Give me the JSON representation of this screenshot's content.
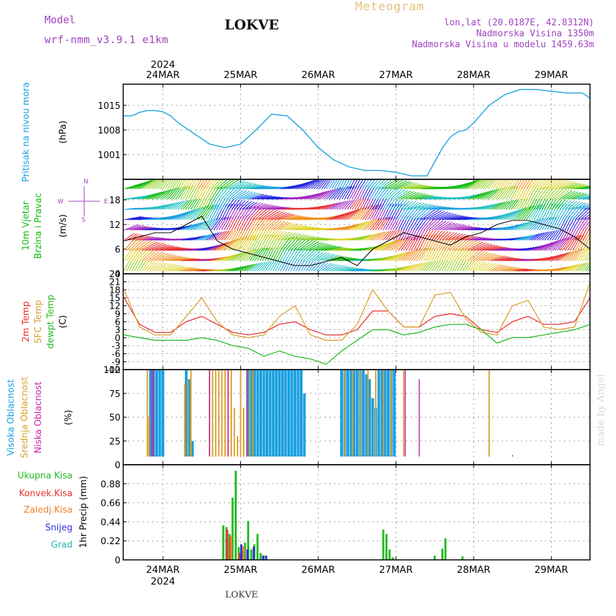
{
  "header": {
    "model_label": "Model",
    "model_name": "wrf-nmm_v3.9.1 e1km",
    "station": "LOKVE",
    "meteogram": "Meteogram",
    "lonlat": "lon,lat (20.0187E, 42.8312N)",
    "altitude": "Nadmorska Visina 1350m",
    "model_altitude": "Nadmorska Visina u modelu 1459.63m"
  },
  "footer": {
    "station": "LOKVE",
    "credit": "made by Angel"
  },
  "colors": {
    "pressure": "#1aa0e0",
    "wind_label": "#11bb11",
    "temp2m": "#e83030",
    "sfc": "#dca030",
    "dewpt": "#22bb22",
    "cloud_high": "#1aa0e0",
    "cloud_mid": "#dca030",
    "cloud_low": "#cc22aa",
    "purple": "#a040c0",
    "meteogram": "#e8c078"
  },
  "chart_data": [
    {
      "type": "line",
      "panel": "pressure",
      "ylabel_left": "Pritisak na nivou mora",
      "ylabel_unit": "(hPa)",
      "ylim": [
        994,
        1021
      ],
      "yticks": [
        "1015",
        "1008",
        "1001"
      ],
      "ytick_values": [
        1015,
        1008,
        1001
      ],
      "x_top": [
        "24MAR",
        "25MAR",
        "26MAR",
        "27MAR",
        "28MAR",
        "29MAR"
      ],
      "x_top_year": "2024",
      "x": [
        -0.5,
        -0.4,
        -0.3,
        -0.2,
        -0.1,
        0,
        0.1,
        0.2,
        0.4,
        0.6,
        0.8,
        1.0,
        1.2,
        1.4,
        1.6,
        1.8,
        2.0,
        2.2,
        2.4,
        2.6,
        2.8,
        3.0,
        3.2,
        3.4,
        3.6,
        3.7,
        3.8,
        3.9,
        4.0,
        4.2,
        4.4,
        4.6,
        4.8,
        5.0,
        5.2,
        5.4,
        5.5
      ],
      "values": [
        1012,
        1012,
        1013,
        1013.5,
        1013.5,
        1013.2,
        1012,
        1010,
        1007,
        1004,
        1003,
        1004,
        1008,
        1012.5,
        1012,
        1008,
        1003,
        999.5,
        997.5,
        996.5,
        996.5,
        996,
        995,
        995,
        1003,
        1006,
        1007.5,
        1008,
        1010,
        1015,
        1018,
        1019.5,
        1019.5,
        1019,
        1018.5,
        1018.5,
        1017
      ]
    },
    {
      "type": "line",
      "panel": "wind",
      "ylabel_left": [
        "10m Vjetar",
        "Brzina i Pravac"
      ],
      "ylabel_unit": "(m/s)",
      "legend_compass": [
        "N",
        "E",
        "W",
        "S"
      ],
      "ylim": [
        0,
        23
      ],
      "yticks": [
        "18",
        "12",
        "6",
        "0"
      ],
      "ytick_values": [
        18,
        12,
        6,
        0
      ],
      "series": [
        {
          "name": "",
          "x": [
            -0.5,
            -0.3,
            -0.1,
            0.1,
            0.3,
            0.5,
            0.7,
            0.9,
            1.1,
            1.3,
            1.5,
            1.7,
            1.9,
            2.1,
            2.3,
            2.5,
            2.7,
            2.9,
            3.1,
            3.3,
            3.5,
            3.7,
            3.9,
            4.1,
            4.3,
            4.5,
            4.7,
            4.9,
            5.1,
            5.3,
            5.5
          ],
          "values": [
            8,
            9,
            10,
            10,
            12,
            14,
            8,
            6,
            5,
            4,
            3,
            2,
            2,
            3,
            4,
            2,
            6,
            8,
            10,
            9,
            8,
            7,
            9,
            10,
            12,
            13,
            13,
            12,
            11,
            9,
            6
          ]
        }
      ]
    },
    {
      "type": "line",
      "panel": "temperature",
      "ylabel_left": [
        "2m Temp",
        "SFC Temp",
        "dewpt Temp"
      ],
      "ylabel_unit": "(C)",
      "ylim": [
        -12,
        24
      ],
      "yticks": [
        "24",
        "21",
        "18",
        "15",
        "12",
        "9",
        "6",
        "3",
        "0",
        "-3",
        "-6",
        "-9",
        "-12"
      ],
      "ytick_values": [
        24,
        21,
        18,
        15,
        12,
        9,
        6,
        3,
        0,
        -3,
        -6,
        -9,
        -12
      ],
      "series": [
        {
          "name": "2m Temp",
          "x": [
            -0.5,
            -0.3,
            -0.1,
            0.1,
            0.3,
            0.5,
            0.7,
            0.9,
            1.1,
            1.3,
            1.5,
            1.7,
            1.9,
            2.1,
            2.3,
            2.5,
            2.7,
            2.9,
            3.1,
            3.3,
            3.5,
            3.7,
            3.9,
            4.1,
            4.3,
            4.5,
            4.7,
            4.9,
            5.1,
            5.3,
            5.5
          ],
          "values": [
            15,
            5,
            2,
            2,
            6,
            8,
            5,
            2,
            1,
            2,
            5,
            6,
            3,
            1,
            1,
            3,
            10,
            10,
            4,
            4,
            8,
            9,
            8,
            3,
            2,
            6,
            8,
            5,
            5,
            6,
            15
          ]
        },
        {
          "name": "SFC Temp",
          "x": [
            -0.5,
            -0.3,
            -0.1,
            0.1,
            0.3,
            0.5,
            0.7,
            0.9,
            1.1,
            1.3,
            1.5,
            1.7,
            1.9,
            2.1,
            2.3,
            2.5,
            2.7,
            2.9,
            3.1,
            3.3,
            3.5,
            3.7,
            3.9,
            4.1,
            4.3,
            4.5,
            4.7,
            4.9,
            5.1,
            5.3,
            5.5
          ],
          "values": [
            18,
            4,
            1,
            1,
            8,
            15,
            6,
            1,
            0,
            1,
            8,
            12,
            1,
            -1,
            -1,
            5,
            18,
            10,
            4,
            4,
            16,
            17,
            7,
            2,
            1,
            12,
            14,
            4,
            3,
            4,
            21
          ]
        },
        {
          "name": "dewpt Temp",
          "x": [
            -0.5,
            -0.3,
            -0.1,
            0.1,
            0.3,
            0.5,
            0.7,
            0.9,
            1.1,
            1.3,
            1.5,
            1.7,
            1.9,
            2.1,
            2.3,
            2.5,
            2.7,
            2.9,
            3.1,
            3.3,
            3.5,
            3.7,
            3.9,
            4.1,
            4.3,
            4.5,
            4.7,
            4.9,
            5.1,
            5.3,
            5.5
          ],
          "values": [
            1,
            0,
            -1,
            -1,
            -1,
            0,
            -1,
            -3,
            -4,
            -7,
            -5,
            -7,
            -8,
            -10,
            -5,
            -1,
            3,
            3,
            1,
            2,
            4,
            5,
            5,
            3,
            -2,
            0,
            0,
            1,
            2,
            3,
            5
          ]
        }
      ]
    },
    {
      "type": "bar",
      "panel": "clouds",
      "ylabel_left": [
        "Visoka Oblacnost",
        "Srednja Oblacnost",
        "Niska Oblacnost"
      ],
      "ylabel_unit": "(%)",
      "ylim": [
        0,
        100
      ],
      "yticks": [
        "100",
        "75",
        "50",
        "25",
        "0"
      ],
      "ytick_values": [
        100,
        75,
        50,
        25,
        0
      ],
      "series": [
        {
          "name": "Visoka Oblacnost",
          "x": [
            -0.16,
            -0.12,
            -0.08,
            -0.04,
            0.0,
            0.3,
            0.34,
            0.38,
            1.1,
            1.14,
            1.18,
            1.22,
            1.26,
            1.3,
            1.34,
            1.38,
            1.42,
            1.46,
            1.5,
            1.54,
            1.58,
            1.62,
            1.66,
            1.7,
            1.74,
            1.78,
            1.82,
            2.3,
            2.34,
            2.38,
            2.42,
            2.46,
            2.5,
            2.54,
            2.58,
            2.62,
            2.66,
            2.7,
            2.74,
            2.78,
            2.82,
            2.86,
            2.9,
            2.94,
            2.98
          ],
          "values": [
            100,
            100,
            100,
            100,
            100,
            100,
            90,
            25,
            100,
            100,
            100,
            100,
            100,
            100,
            100,
            100,
            100,
            100,
            100,
            100,
            100,
            100,
            100,
            100,
            100,
            100,
            75,
            100,
            100,
            100,
            100,
            100,
            100,
            100,
            100,
            95,
            90,
            70,
            60,
            100,
            100,
            100,
            100,
            100,
            100
          ]
        },
        {
          "name": "Srednja Oblacnost",
          "x": [
            -0.2,
            -0.18,
            0.28,
            0.32,
            0.36,
            0.6,
            0.64,
            0.68,
            0.72,
            0.76,
            0.8,
            0.84,
            0.88,
            0.92,
            0.96,
            1.0,
            1.04,
            1.08,
            1.12,
            1.16,
            2.34,
            2.44,
            2.54,
            2.64,
            2.74,
            2.84,
            2.94,
            3.1,
            4.2
          ],
          "values": [
            100,
            50,
            85,
            90,
            100,
            100,
            100,
            100,
            100,
            100,
            100,
            100,
            100,
            60,
            30,
            100,
            60,
            25,
            100,
            100,
            100,
            100,
            100,
            100,
            100,
            100,
            100,
            100,
            100
          ]
        },
        {
          "name": "Niska Oblacnost",
          "x": [
            -0.55,
            -0.45,
            -0.14,
            -0.12,
            0.6,
            0.84,
            1.08,
            1.2,
            1.45,
            1.7,
            1.8,
            2.08,
            3.12,
            3.3,
            4.5,
            4.8
          ],
          "values": [
            5,
            2,
            100,
            100,
            100,
            100,
            100,
            5,
            3,
            2,
            1,
            8,
            100,
            90,
            10,
            5
          ]
        }
      ]
    },
    {
      "type": "bar",
      "panel": "precipitation",
      "legend": [
        "Ukupna Kisa",
        "Konvek.Kisa",
        "Zaledj.Kisa",
        "Snijeg",
        "Grad"
      ],
      "ylabel_unit": "1hr Precip (mm)",
      "ylim": [
        0,
        1.1
      ],
      "yticks": [
        "0.88",
        "0.66",
        "0.44",
        "0.22",
        "0"
      ],
      "ytick_values": [
        0.88,
        0.66,
        0.44,
        0.22,
        0
      ],
      "x_bottom": [
        "24MAR",
        "25MAR",
        "26MAR",
        "27MAR",
        "28MAR",
        "29MAR"
      ],
      "x_bottom_year": "2024",
      "series": [
        {
          "name": "Ukupna Kisa",
          "x": [
            0.78,
            0.82,
            0.86,
            0.9,
            0.94,
            0.98,
            1.02,
            1.06,
            1.1,
            1.14,
            1.18,
            1.22,
            1.26,
            1.3,
            2.84,
            2.88,
            2.92,
            2.96,
            3.5,
            3.6,
            3.64,
            3.86
          ],
          "values": [
            0.4,
            0.38,
            0.3,
            0.72,
            1.03,
            0.15,
            0.1,
            0.2,
            0.45,
            0.12,
            0.18,
            0.3,
            0.08,
            0.05,
            0.35,
            0.3,
            0.12,
            0.03,
            0.05,
            0.13,
            0.25,
            0.04
          ]
        },
        {
          "name": "Konvek.Kisa",
          "x": [
            0.82,
            0.86,
            0.98
          ],
          "values": [
            0.35,
            0.25,
            0.08
          ]
        },
        {
          "name": "Zaledj.Kisa",
          "x": [
            0.86,
            1.02
          ],
          "values": [
            0.28,
            0.16
          ]
        },
        {
          "name": "Snijeg",
          "x": [
            0.98,
            1.06,
            1.14,
            1.26,
            1.3
          ],
          "values": [
            0.18,
            0.12,
            0.15,
            0.05,
            0.05
          ]
        }
      ]
    }
  ]
}
